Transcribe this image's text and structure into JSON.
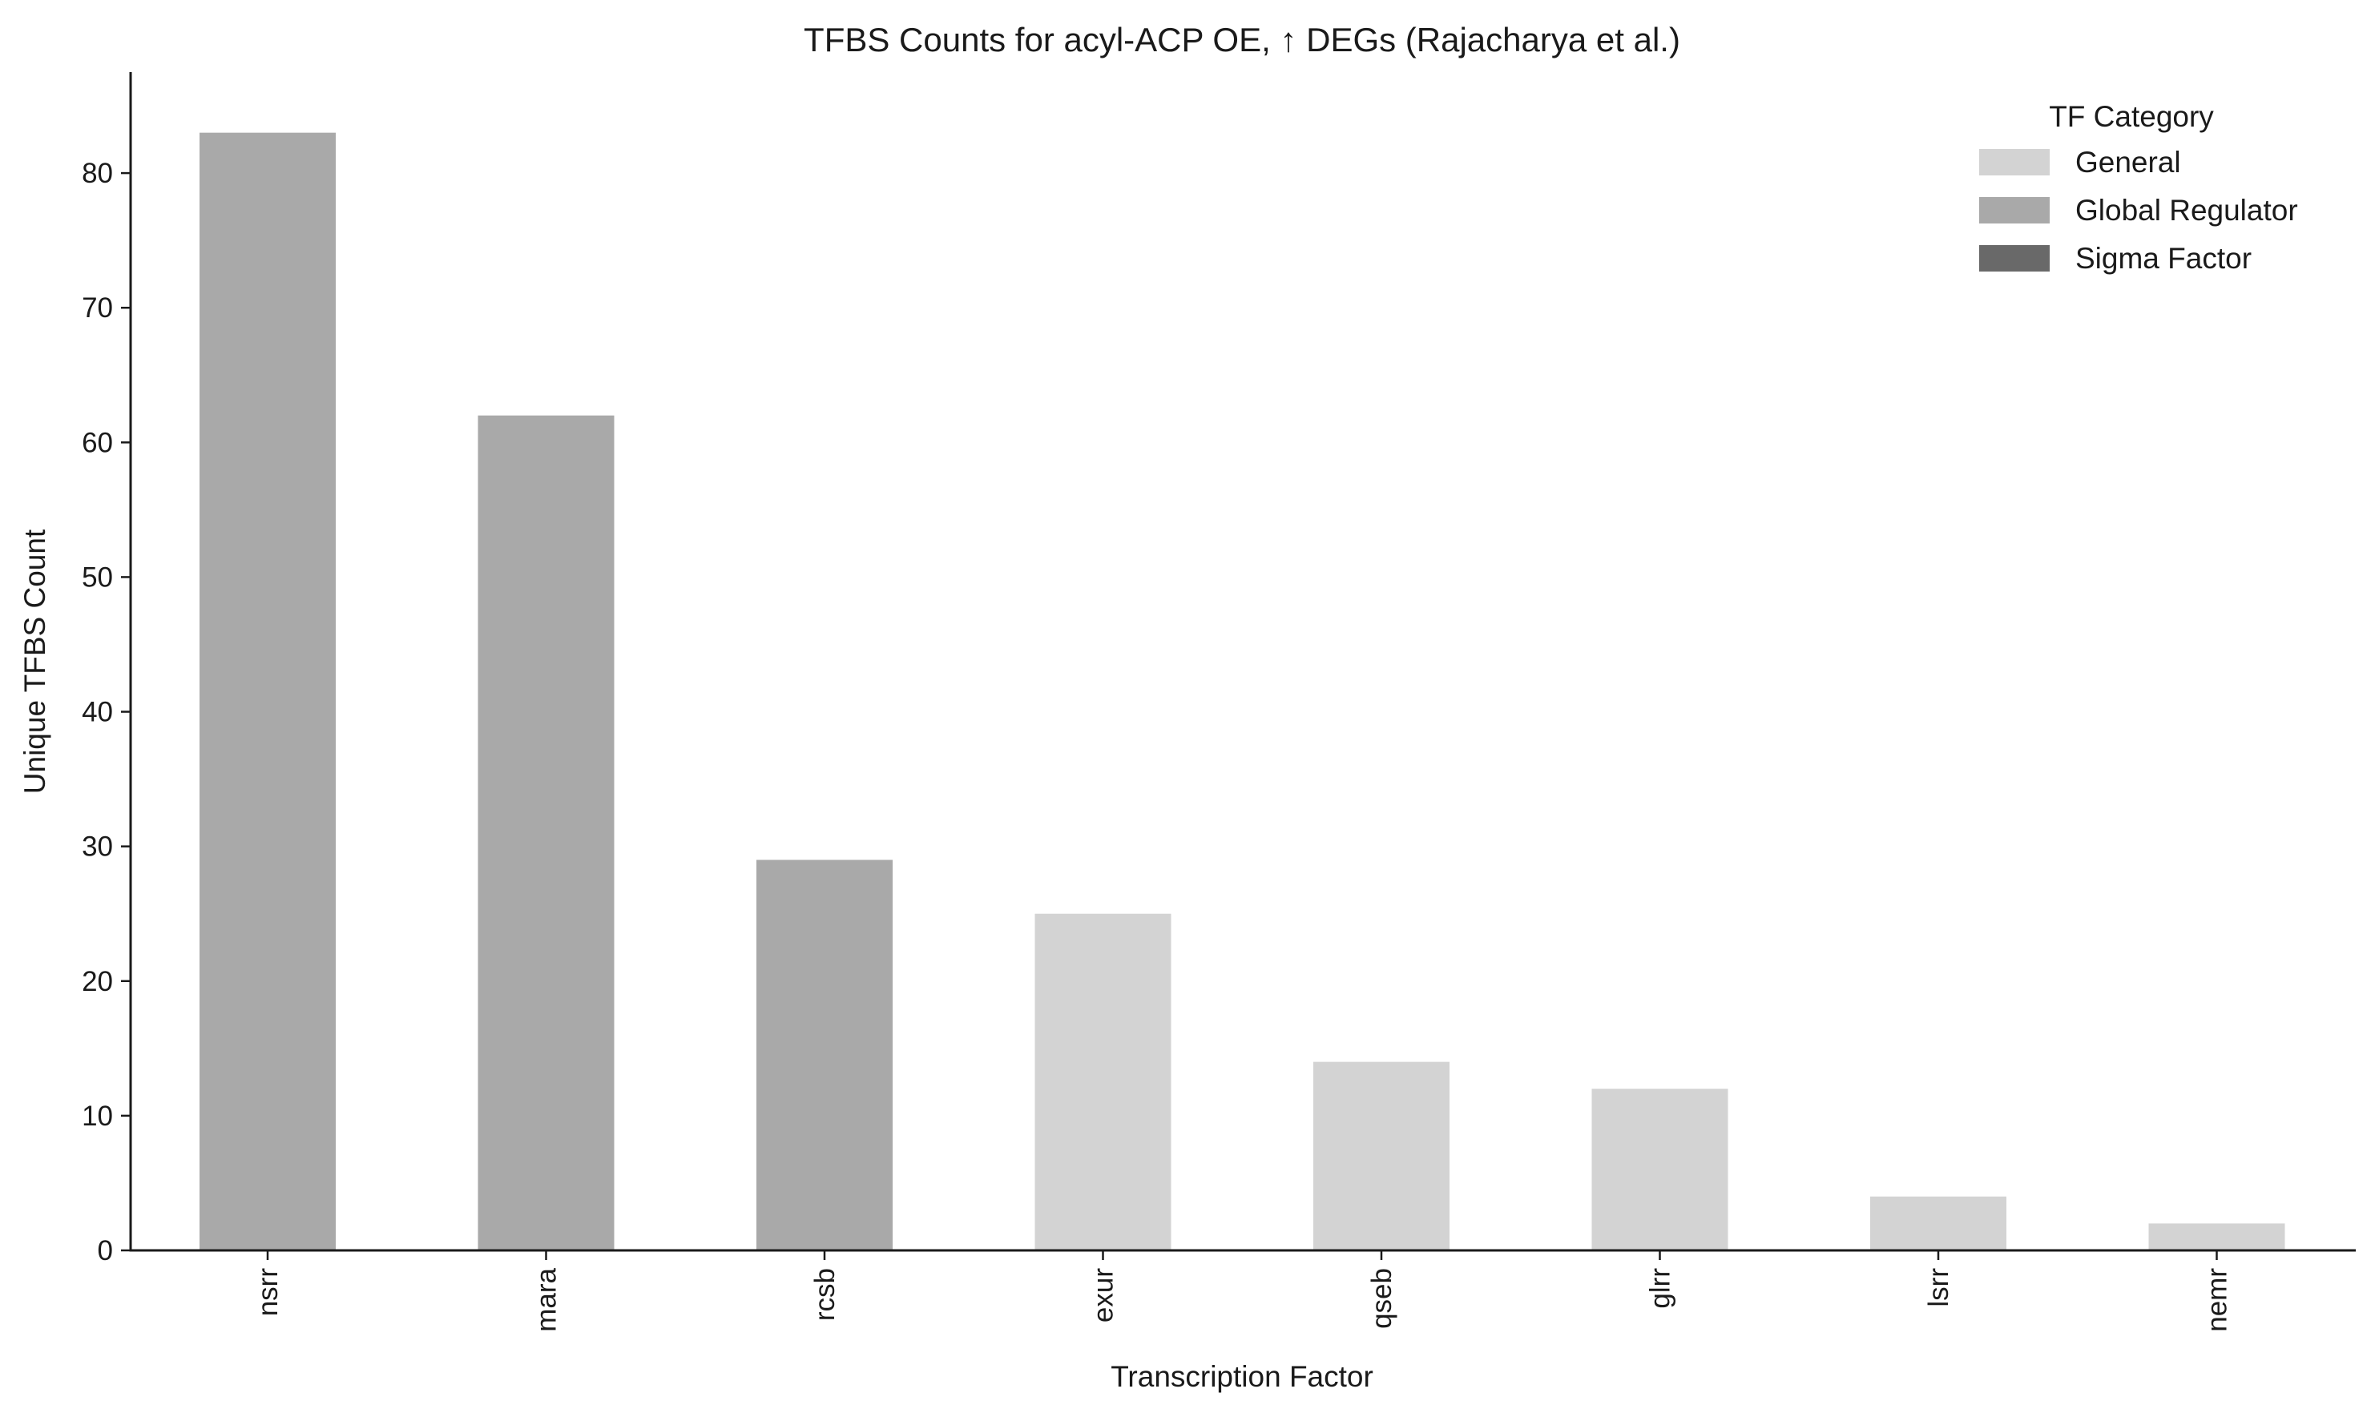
{
  "chart_data": {
    "type": "bar",
    "title": "TFBS Counts for acyl-ACP OE, ↑ DEGs (Rajacharya et al.)",
    "xlabel": "Transcription Factor",
    "ylabel": "Unique TFBS Count",
    "categories": [
      "nsrr",
      "mara",
      "rcsb",
      "exur",
      "qseb",
      "glrr",
      "lsrr",
      "nemr"
    ],
    "values": [
      83,
      62,
      29,
      25,
      14,
      12,
      4,
      2
    ],
    "bar_category": [
      "Global Regulator",
      "Global Regulator",
      "Global Regulator",
      "General",
      "General",
      "General",
      "General",
      "General"
    ],
    "ylim": [
      0,
      87.5
    ],
    "yticks": [
      0,
      10,
      20,
      30,
      40,
      50,
      60,
      70,
      80
    ],
    "grid": false,
    "legend": {
      "title": "TF Category",
      "placement": "top-right",
      "entries": [
        {
          "label": "General",
          "color": "#d3d3d3"
        },
        {
          "label": "Global Regulator",
          "color": "#a9a9a9"
        },
        {
          "label": "Sigma Factor",
          "color": "#696969"
        }
      ]
    }
  }
}
